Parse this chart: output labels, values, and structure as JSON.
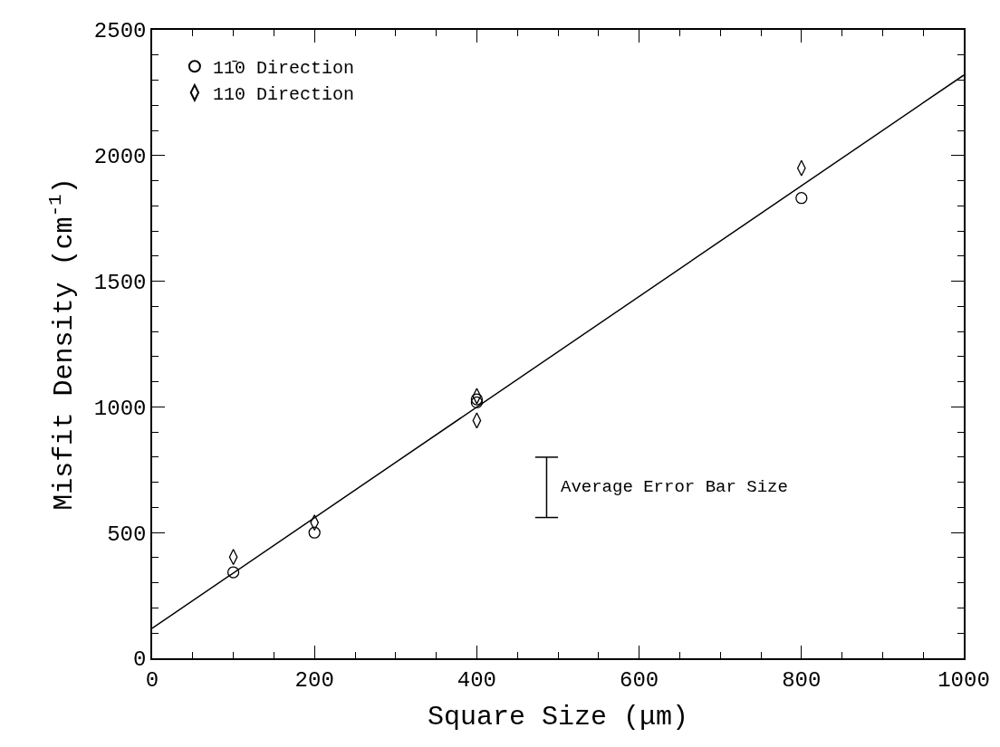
{
  "chart_data": {
    "type": "scatter",
    "xlabel": "Square Size (μm)",
    "ylabel": "Misfit Density (cm$^{-1}$)",
    "series": [
      {
        "name": "11̄0 Direction",
        "color": "#000000",
        "marker": "circle",
        "x": [
          100,
          200,
          400,
          400,
          800
        ],
        "values": [
          342,
          500,
          1018,
          1030,
          1831
        ]
      },
      {
        "name": "110 Direction",
        "color": "#000000",
        "marker": "diamond",
        "x": [
          100,
          200,
          400,
          400,
          800
        ],
        "values": [
          403,
          540,
          1043,
          946,
          1950
        ]
      },
      {
        "type": "line",
        "color": "#000000",
        "marker": "none",
        "line_style": "solid",
        "x": [
          0,
          1000
        ],
        "values": [
          119,
          2320
        ]
      },
      {
        "type": "line",
        "color": "#000000",
        "marker": "none",
        "line_style": "solid",
        "x": [
          486,
          486
        ],
        "values": [
          560,
          800
        ]
      }
    ],
    "annotations": [
      "Average Error Bar Size"
    ],
    "xlim": [
      0,
      1000
    ],
    "xticks": [
      0,
      200,
      400,
      600,
      800,
      1000
    ],
    "ylim": [
      0,
      2500
    ],
    "yticks": [
      0,
      500,
      1000,
      1500,
      2000,
      2500
    ],
    "legend": "top left"
  }
}
